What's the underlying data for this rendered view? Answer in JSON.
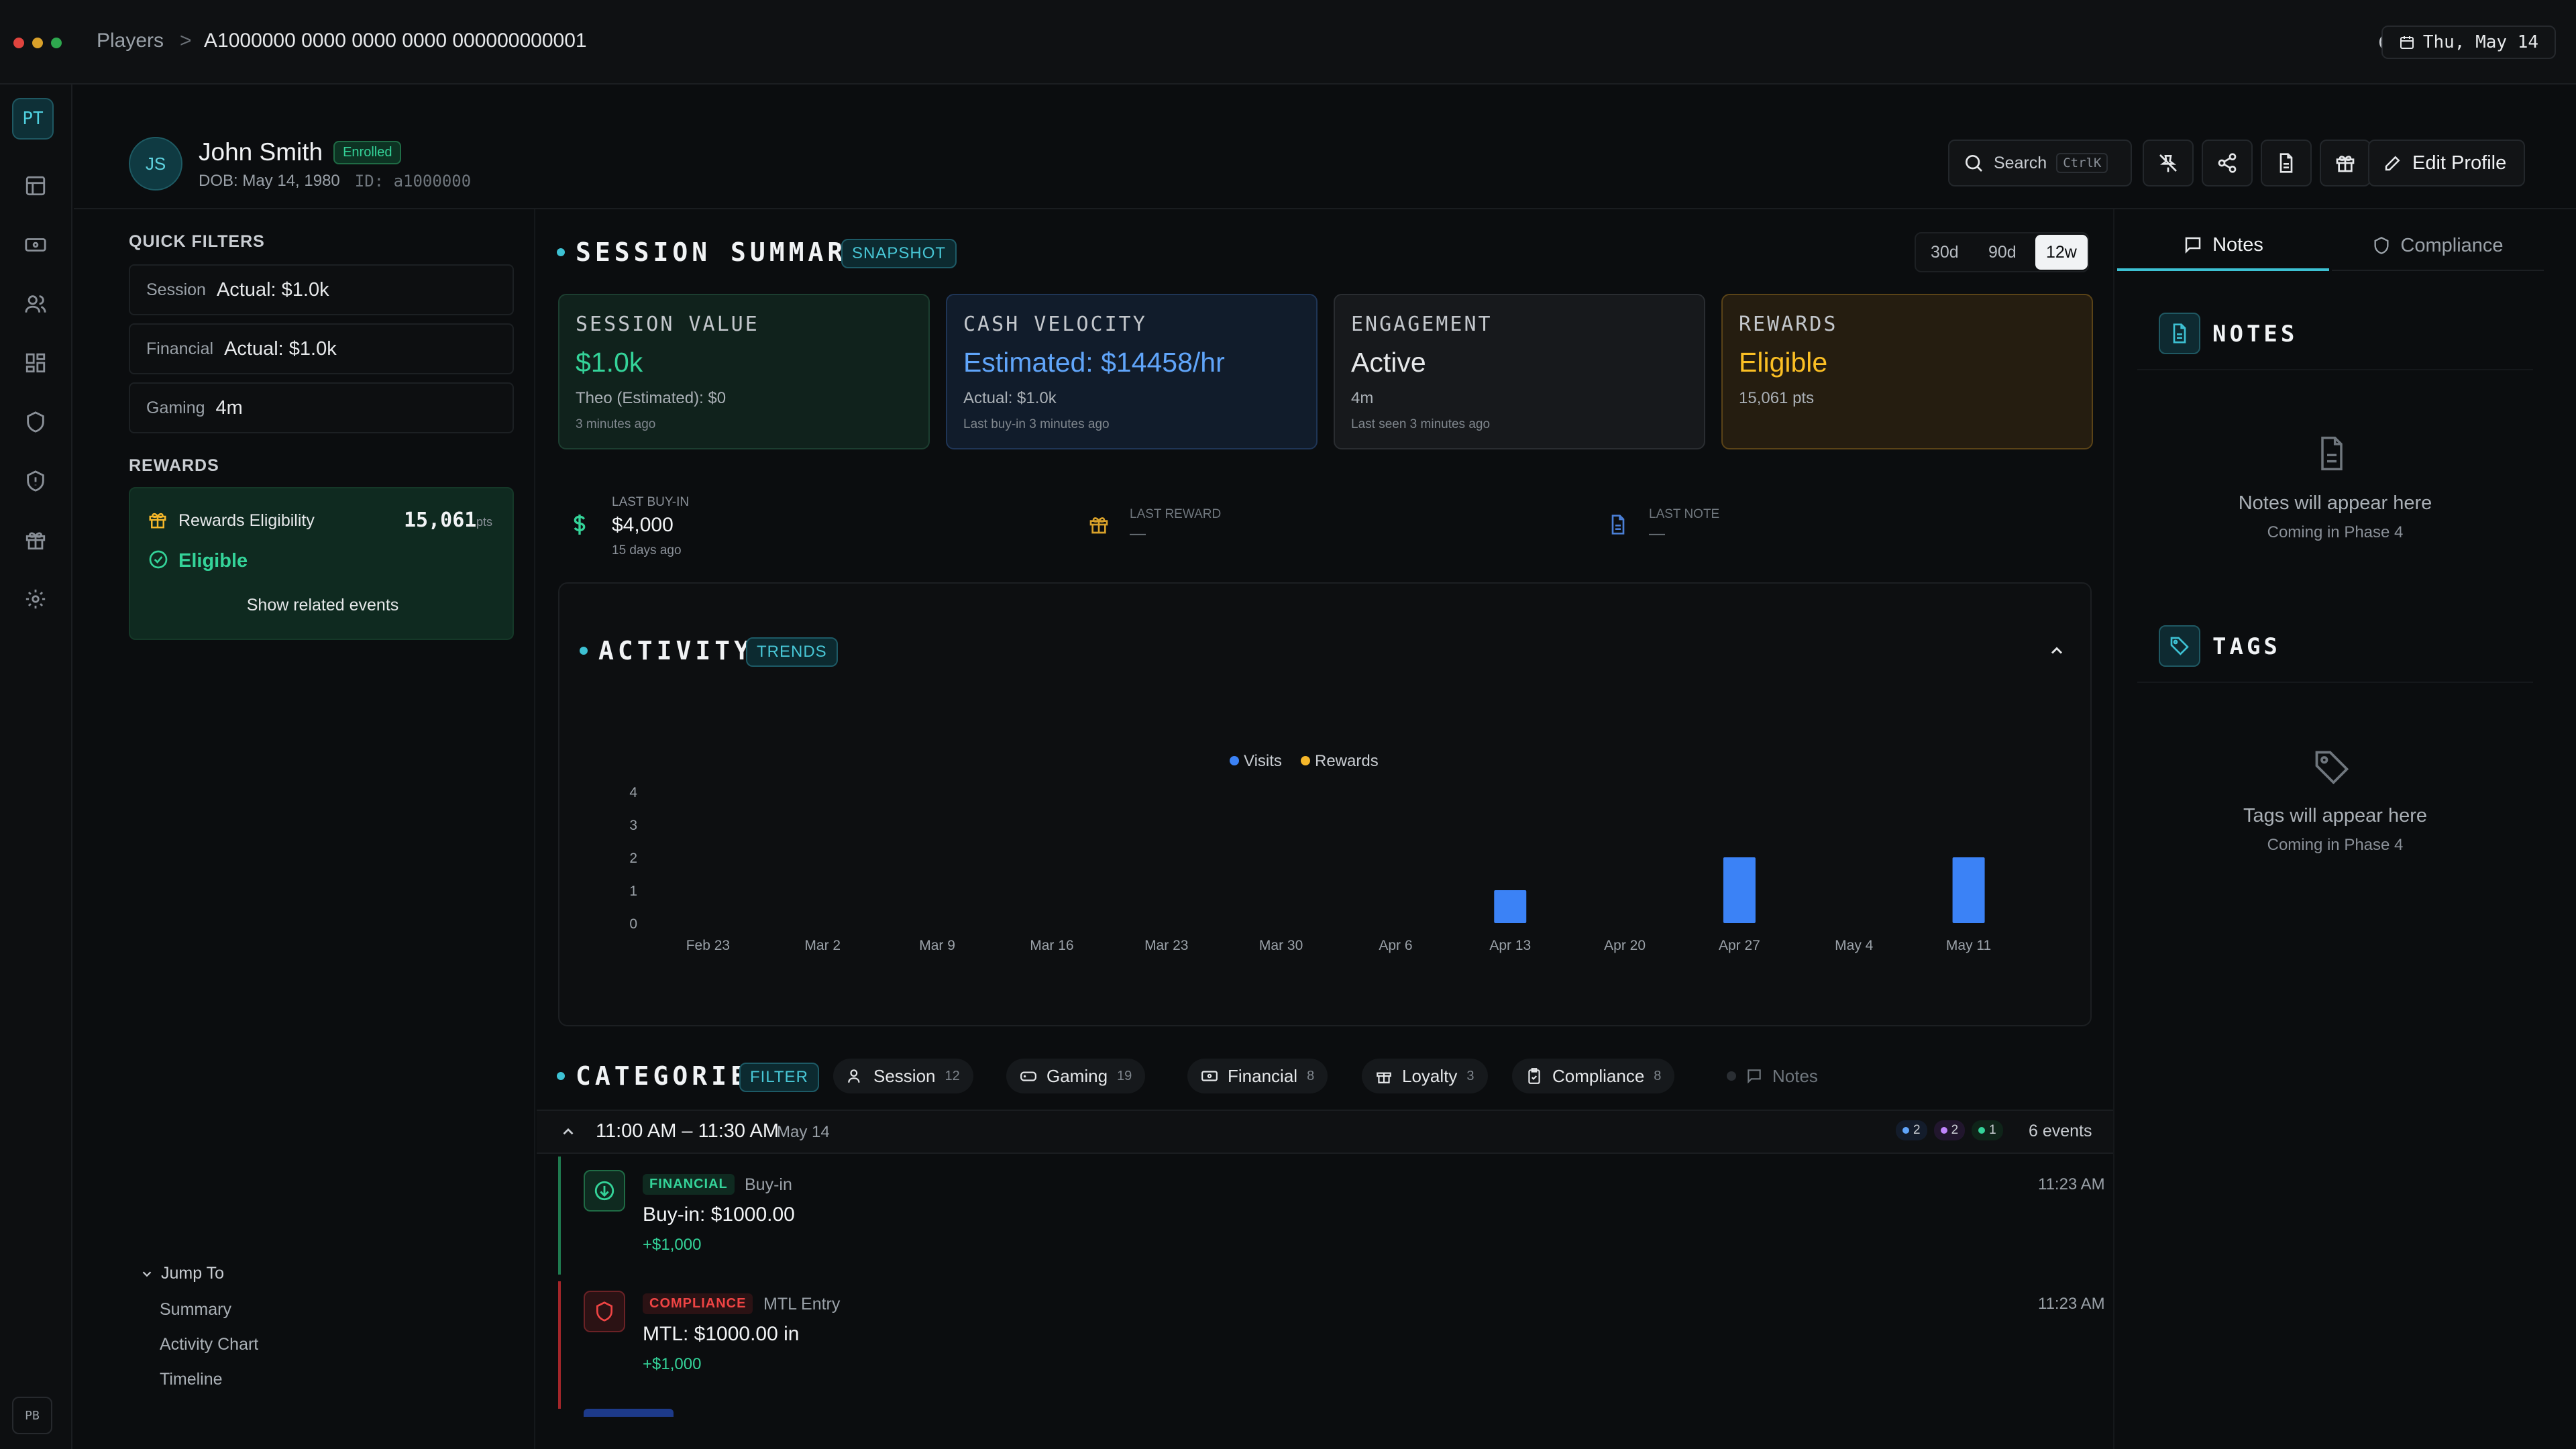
{
  "colors": {
    "accent": "#3dc1d3",
    "green": "#34d399",
    "blue": "#60a5fa",
    "amber": "#fbbf24",
    "red": "#ef4444",
    "bar": "#3b82f6",
    "rewards_legend": "#f5b72a"
  },
  "titlebar": {
    "breadcrumb_root": "Players",
    "breadcrumb_sep": ">",
    "breadcrumb_current": "A1000000 0000 0000 0000 000000000001",
    "date": "Thu, May 14"
  },
  "rail": {
    "logo": "PT",
    "footer": "PB",
    "icons": [
      "layout-icon",
      "ticket-icon",
      "users-icon",
      "grid-icon",
      "shield-icon",
      "shield-check-icon",
      "gift-icon",
      "settings-icon"
    ]
  },
  "player": {
    "initials": "JS",
    "name": "John Smith",
    "status": "Enrolled",
    "dob": "DOB: May 14, 1980",
    "id": "ID: a1000000"
  },
  "toolbar": {
    "search_label": "Search",
    "search_shortcut": "CtrlK",
    "edit_label": "Edit Profile"
  },
  "quick_filters": {
    "title": "QUICK FILTERS",
    "items": [
      {
        "key": "Session",
        "value": "Actual: $1.0k"
      },
      {
        "key": "Financial",
        "value": "Actual: $1.0k"
      },
      {
        "key": "Gaming",
        "value": "4m"
      }
    ]
  },
  "rewards_panel": {
    "title": "REWARDS",
    "label": "Rewards Eligibility",
    "points": "15,061",
    "points_unit": "pts",
    "status": "Eligible",
    "link": "Show related events"
  },
  "jump": {
    "title": "Jump To",
    "items": [
      "Summary",
      "Activity Chart",
      "Timeline"
    ]
  },
  "session_summary": {
    "title": "SESSION SUMMARY",
    "pill": "SNAPSHOT",
    "ranges": [
      "30d",
      "90d",
      "12w"
    ],
    "selected_range": "12w",
    "cards": [
      {
        "title": "SESSION VALUE",
        "value": "$1.0k",
        "sub": "Theo (Estimated): $0",
        "note": "3 minutes ago"
      },
      {
        "title": "CASH VELOCITY",
        "value": "Estimated: $14458/hr",
        "sub": "Actual: $1.0k",
        "note": "Last buy-in 3 minutes ago"
      },
      {
        "title": "ENGAGEMENT",
        "value": "Active",
        "sub": "4m",
        "note": "Last seen 3 minutes ago"
      },
      {
        "title": "REWARDS",
        "value": "Eligible",
        "sub": "15,061 pts",
        "note": ""
      }
    ],
    "stats": [
      {
        "label": "LAST BUY-IN",
        "value": "$4,000",
        "note": "15 days ago"
      },
      {
        "label": "LAST REWARD",
        "value": "—",
        "note": ""
      },
      {
        "label": "LAST NOTE",
        "value": "—",
        "note": ""
      }
    ]
  },
  "activity": {
    "title": "ACTIVITY",
    "pill": "TRENDS"
  },
  "chart_data": {
    "type": "bar",
    "categories": [
      "Feb 23",
      "Mar 2",
      "Mar 9",
      "Mar 16",
      "Mar 23",
      "Mar 30",
      "Apr 6",
      "Apr 13",
      "Apr 20",
      "Apr 27",
      "May 4",
      "May 11"
    ],
    "series": [
      {
        "name": "Visits",
        "values": [
          0,
          0,
          0,
          0,
          0,
          0,
          0,
          1,
          0,
          2,
          0,
          2
        ]
      },
      {
        "name": "Rewards",
        "values": [
          0,
          0,
          0,
          0,
          0,
          0,
          0,
          0,
          0,
          0,
          0,
          0
        ]
      }
    ],
    "yticks": [
      0,
      1,
      2,
      3,
      4
    ],
    "ylim": [
      0,
      4
    ],
    "legend": "top-center",
    "grid": false,
    "title": "",
    "xlabel": "",
    "ylabel": ""
  },
  "categories": {
    "title": "CATEGORIES",
    "pill": "FILTER",
    "chips": [
      {
        "label": "Session",
        "count": "12"
      },
      {
        "label": "Gaming",
        "count": "19"
      },
      {
        "label": "Financial",
        "count": "8"
      },
      {
        "label": "Loyalty",
        "count": "3"
      },
      {
        "label": "Compliance",
        "count": "8"
      },
      {
        "label": "Notes",
        "count": ""
      }
    ]
  },
  "timeline": {
    "group_time": "11:00 AM – 11:30 AM",
    "group_date": "May 14",
    "counts": [
      {
        "n": "2",
        "color": "#60a5fa"
      },
      {
        "n": "2",
        "color": "#c084fc"
      },
      {
        "n": "1",
        "color": "#34d399"
      }
    ],
    "total": "6 events",
    "events": [
      {
        "tag": "FINANCIAL",
        "type": "Buy-in",
        "title": "Buy-in: $1000.00",
        "amount": "+$1,000",
        "time": "11:23 AM"
      },
      {
        "tag": "COMPLIANCE",
        "type": "MTL Entry",
        "title": "MTL: $1000.00 in",
        "amount": "+$1,000",
        "time": "11:23 AM"
      }
    ]
  },
  "right_panel": {
    "tabs": [
      "Notes",
      "Compliance"
    ],
    "notes_title": "NOTES",
    "notes_empty": "Notes will appear here",
    "notes_phase": "Coming in Phase 4",
    "tags_title": "TAGS",
    "tags_empty": "Tags will appear here",
    "tags_phase": "Coming in Phase 4"
  }
}
